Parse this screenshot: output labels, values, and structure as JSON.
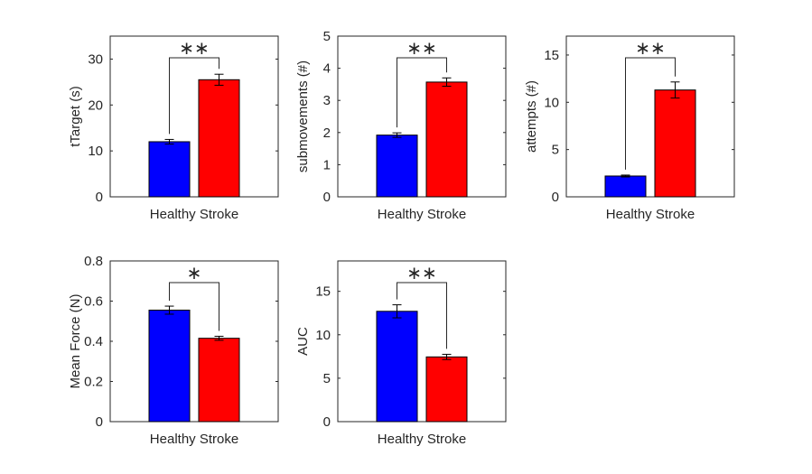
{
  "chart_data": [
    {
      "type": "bar",
      "categories": [
        "Healthy",
        "Stroke"
      ],
      "xlabel_text": "Healthy Stroke",
      "ylabel": "tTarget (s)",
      "ylim": [
        0,
        35
      ],
      "yticks": [
        0,
        10,
        20,
        30
      ],
      "values": [
        12.0,
        25.5
      ],
      "errors": [
        0.5,
        1.2
      ],
      "colors": [
        "#0000FF",
        "#FF0000"
      ],
      "significance": "∗∗"
    },
    {
      "type": "bar",
      "categories": [
        "Healthy",
        "Stroke"
      ],
      "xlabel_text": "Healthy Stroke",
      "ylabel": "submovements (#)",
      "ylim": [
        0,
        5
      ],
      "yticks": [
        0,
        1,
        2,
        3,
        4,
        5
      ],
      "values": [
        1.92,
        3.57
      ],
      "errors": [
        0.07,
        0.13
      ],
      "colors": [
        "#0000FF",
        "#FF0000"
      ],
      "significance": "∗∗"
    },
    {
      "type": "bar",
      "categories": [
        "Healthy",
        "Stroke"
      ],
      "xlabel_text": "Healthy Stroke",
      "ylabel": "attempts (#)",
      "ylim": [
        0,
        17
      ],
      "yticks": [
        0,
        5,
        10,
        15
      ],
      "values": [
        2.2,
        11.3
      ],
      "errors": [
        0.1,
        0.85
      ],
      "colors": [
        "#0000FF",
        "#FF0000"
      ],
      "significance": "∗∗"
    },
    {
      "type": "bar",
      "categories": [
        "Healthy",
        "Stroke"
      ],
      "xlabel_text": "Healthy Stroke",
      "ylabel": "Mean Force (N)",
      "ylim": [
        0,
        0.8
      ],
      "yticks": [
        0,
        0.2,
        0.4,
        0.6,
        0.8
      ],
      "values": [
        0.555,
        0.415
      ],
      "errors": [
        0.02,
        0.01
      ],
      "colors": [
        "#0000FF",
        "#FF0000"
      ],
      "significance": "∗"
    },
    {
      "type": "bar",
      "categories": [
        "Healthy",
        "Stroke"
      ],
      "xlabel_text": "Healthy Stroke",
      "ylabel": "AUC",
      "ylim": [
        0,
        18.5
      ],
      "yticks": [
        0,
        5,
        10,
        15
      ],
      "values": [
        12.7,
        7.45
      ],
      "errors": [
        0.75,
        0.3
      ],
      "colors": [
        "#0000FF",
        "#FF0000"
      ],
      "significance": "∗∗"
    }
  ]
}
